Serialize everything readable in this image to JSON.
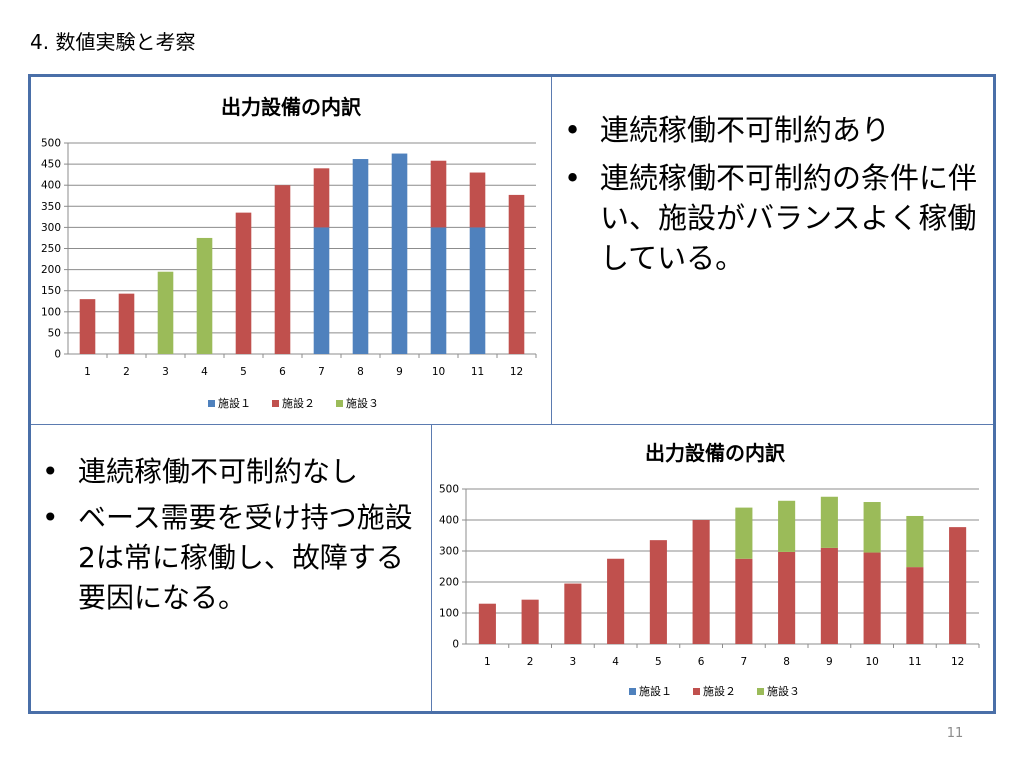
{
  "slide_title": "4. 数値実験と考察",
  "page_number": "11",
  "top_right_bullets": [
    "連続稼働不可制約あり",
    "連続稼働不可制約の条件に伴い、施設がバランスよく稼働している。"
  ],
  "bottom_left_bullets": [
    "連続稼働不可制約なし",
    "ベース需要を受け持つ施設2は常に稼働し、故障する要因になる。"
  ],
  "colors": {
    "施設1": "#4f81bd",
    "施設2": "#c0504d",
    "施設3": "#9bbb59",
    "frame": "#4a6fa8"
  },
  "chart_data": [
    {
      "type": "bar",
      "stacked": true,
      "title": "出力設備の内訳",
      "categories": [
        "1",
        "2",
        "3",
        "4",
        "5",
        "6",
        "7",
        "8",
        "9",
        "10",
        "11",
        "12"
      ],
      "series": [
        {
          "name": "施設１",
          "values": [
            0,
            0,
            0,
            0,
            0,
            0,
            300,
            462,
            475,
            300,
            300,
            0
          ]
        },
        {
          "name": "施設２",
          "values": [
            130,
            143,
            0,
            0,
            335,
            400,
            140,
            0,
            0,
            158,
            130,
            377
          ]
        },
        {
          "name": "施設３",
          "values": [
            0,
            0,
            195,
            275,
            0,
            0,
            0,
            0,
            0,
            0,
            0,
            0
          ]
        }
      ],
      "y_ticks": [
        0,
        50,
        100,
        150,
        200,
        250,
        300,
        350,
        400,
        450,
        500
      ],
      "ylim": [
        0,
        500
      ],
      "grid": true,
      "legend": "bottom"
    },
    {
      "type": "bar",
      "stacked": true,
      "title": "出力設備の内訳",
      "categories": [
        "1",
        "2",
        "3",
        "4",
        "5",
        "6",
        "7",
        "8",
        "9",
        "10",
        "11",
        "12"
      ],
      "series": [
        {
          "name": "施設１",
          "values": [
            0,
            0,
            0,
            0,
            0,
            0,
            0,
            0,
            0,
            0,
            0,
            0
          ]
        },
        {
          "name": "施設２",
          "values": [
            130,
            143,
            195,
            275,
            335,
            400,
            275,
            297,
            310,
            295,
            248,
            377
          ]
        },
        {
          "name": "施設３",
          "values": [
            0,
            0,
            0,
            0,
            0,
            0,
            165,
            165,
            165,
            163,
            165,
            0
          ]
        }
      ],
      "y_ticks": [
        0,
        100,
        200,
        300,
        400,
        500
      ],
      "ylim": [
        0,
        500
      ],
      "grid": true,
      "legend": "bottom"
    }
  ]
}
